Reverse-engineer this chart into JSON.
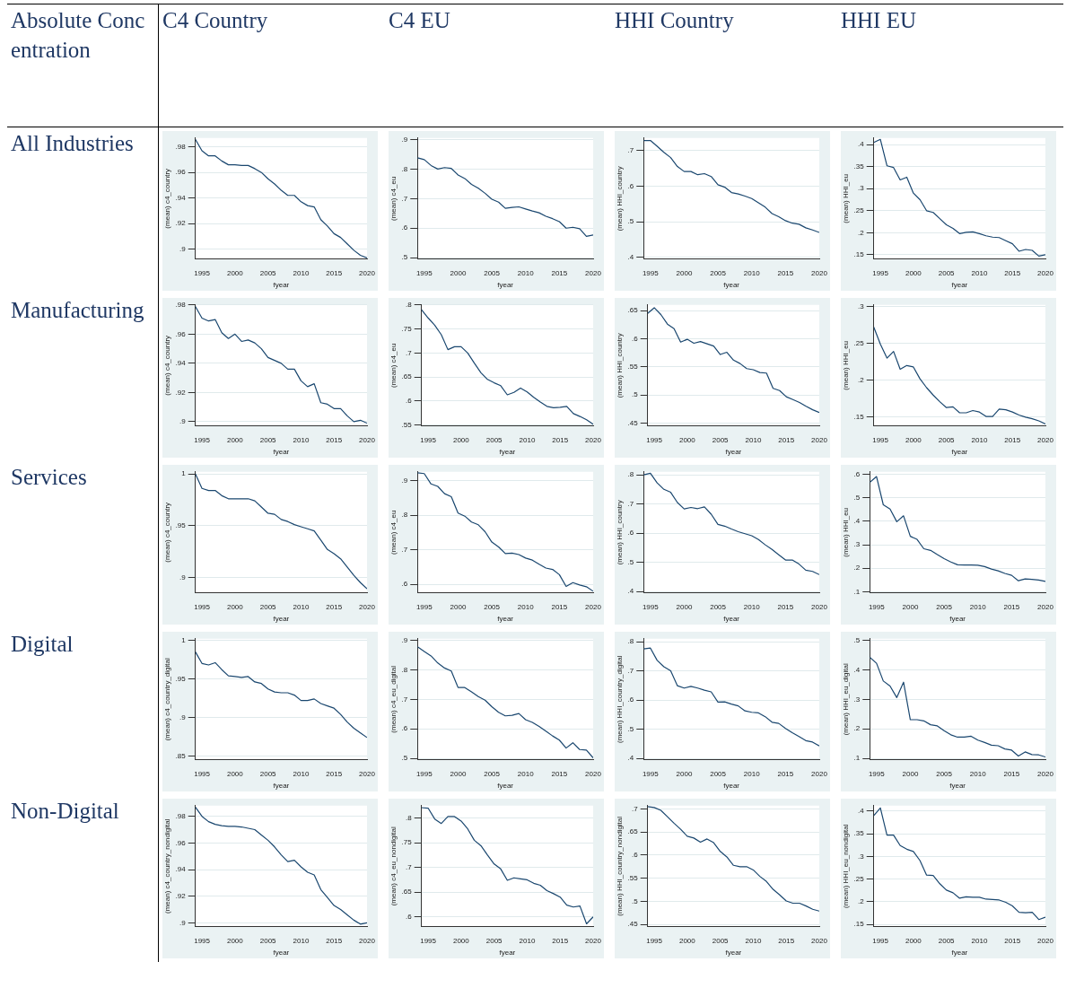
{
  "chart_data": [
    {
      "type": "other",
      "annotations": [
        "Absolute Concentration",
        "C4 Country",
        "C4 EU",
        "HHI Country",
        "HHI EU",
        "All Industries",
        "Manufacturing",
        "Services",
        "Digital",
        "Non-Digital"
      ]
    },
    {
      "type": "line",
      "xlabel": "fyear",
      "ylabel": "(mean) c4_country",
      "color": "#1a476f",
      "grid": "y",
      "x": [
        1994,
        1995,
        1996,
        1997,
        1998,
        1999,
        2000,
        2001,
        2002,
        2003,
        2004,
        2005,
        2006,
        2007,
        2008,
        2009,
        2010,
        2011,
        2012,
        2013,
        2014,
        2015,
        2016,
        2017,
        2018,
        2019,
        2020
      ],
      "xlim": [
        1994,
        2020
      ],
      "xticks": [
        1995,
        2000,
        2005,
        2010,
        2015,
        2020
      ],
      "ylim": [
        0.892,
        0.987
      ],
      "yticks": [
        {
          "value": 0.9,
          "label": ".9"
        },
        {
          "value": 0.92,
          "label": ".92"
        },
        {
          "value": 0.94,
          "label": ".94"
        },
        {
          "value": 0.96,
          "label": ".96"
        },
        {
          "value": 0.98,
          "label": ".98"
        }
      ],
      "values": [
        0.986,
        0.977,
        0.973,
        0.973,
        0.969,
        0.966,
        0.966,
        0.9655,
        0.9655,
        0.963,
        0.96,
        0.955,
        0.951,
        0.946,
        0.942,
        0.942,
        0.937,
        0.934,
        0.933,
        0.923,
        0.918,
        0.912,
        0.909,
        0.904,
        0.899,
        0.895,
        0.893
      ]
    },
    {
      "type": "line",
      "xlabel": "fyear",
      "ylabel": "(mean) c4_eu",
      "color": "#1a476f",
      "grid": "y",
      "x": [
        1994,
        1995,
        1996,
        1997,
        1998,
        1999,
        2000,
        2001,
        2002,
        2003,
        2004,
        2005,
        2006,
        2007,
        2008,
        2009,
        2010,
        2011,
        2012,
        2013,
        2014,
        2015,
        2016,
        2017,
        2018,
        2019,
        2020
      ],
      "xlim": [
        1994,
        2020
      ],
      "xticks": [
        1995,
        2000,
        2005,
        2010,
        2015,
        2020
      ],
      "ylim": [
        0.495,
        0.905
      ],
      "yticks": [
        {
          "value": 0.5,
          "label": ".5"
        },
        {
          "value": 0.6,
          "label": ".6"
        },
        {
          "value": 0.7,
          "label": ".7"
        },
        {
          "value": 0.8,
          "label": ".8"
        },
        {
          "value": 0.9,
          "label": ".9"
        }
      ],
      "values": [
        0.838,
        0.832,
        0.812,
        0.8,
        0.805,
        0.802,
        0.78,
        0.768,
        0.748,
        0.735,
        0.718,
        0.698,
        0.688,
        0.667,
        0.67,
        0.672,
        0.665,
        0.658,
        0.652,
        0.64,
        0.632,
        0.622,
        0.6,
        0.603,
        0.598,
        0.572,
        0.577
      ]
    },
    {
      "type": "line",
      "xlabel": "fyear",
      "ylabel": "(mean) HHI_country",
      "color": "#1a476f",
      "grid": "y",
      "x": [
        1994,
        1995,
        1996,
        1997,
        1998,
        1999,
        2000,
        2001,
        2002,
        2003,
        2004,
        2005,
        2006,
        2007,
        2008,
        2009,
        2010,
        2011,
        2012,
        2013,
        2014,
        2015,
        2016,
        2017,
        2018,
        2019,
        2020
      ],
      "xlim": [
        1994,
        2020
      ],
      "xticks": [
        1995,
        2000,
        2005,
        2010,
        2015,
        2020
      ],
      "ylim": [
        0.395,
        0.735
      ],
      "yticks": [
        {
          "value": 0.4,
          "label": ".4"
        },
        {
          "value": 0.5,
          "label": ".5"
        },
        {
          "value": 0.6,
          "label": ".6"
        },
        {
          "value": 0.7,
          "label": ".7"
        }
      ],
      "values": [
        0.728,
        0.728,
        0.712,
        0.695,
        0.68,
        0.655,
        0.641,
        0.641,
        0.632,
        0.635,
        0.627,
        0.604,
        0.597,
        0.582,
        0.578,
        0.572,
        0.565,
        0.553,
        0.541,
        0.523,
        0.514,
        0.503,
        0.496,
        0.493,
        0.483,
        0.477,
        0.47
      ]
    },
    {
      "type": "line",
      "xlabel": "fyear",
      "ylabel": "(mean) HHI_eu",
      "color": "#1a476f",
      "grid": "y",
      "x": [
        1994,
        1995,
        1996,
        1997,
        1998,
        1999,
        2000,
        2001,
        2002,
        2003,
        2004,
        2005,
        2006,
        2007,
        2008,
        2009,
        2010,
        2011,
        2012,
        2013,
        2014,
        2015,
        2016,
        2017,
        2018,
        2019,
        2020
      ],
      "xlim": [
        1994,
        2020
      ],
      "xticks": [
        1995,
        2000,
        2005,
        2010,
        2015,
        2020
      ],
      "ylim": [
        0.14,
        0.415
      ],
      "yticks": [
        {
          "value": 0.15,
          "label": ".15"
        },
        {
          "value": 0.2,
          "label": ".2"
        },
        {
          "value": 0.25,
          "label": ".25"
        },
        {
          "value": 0.3,
          "label": ".3"
        },
        {
          "value": 0.35,
          "label": ".35"
        },
        {
          "value": 0.4,
          "label": ".4"
        }
      ],
      "values": [
        0.405,
        0.412,
        0.352,
        0.348,
        0.32,
        0.326,
        0.29,
        0.275,
        0.25,
        0.246,
        0.232,
        0.218,
        0.21,
        0.198,
        0.201,
        0.202,
        0.198,
        0.193,
        0.19,
        0.189,
        0.182,
        0.175,
        0.158,
        0.162,
        0.16,
        0.147,
        0.15
      ]
    },
    {
      "type": "line",
      "xlabel": "fyear",
      "ylabel": "(mean) c4_country",
      "color": "#1a476f",
      "grid": "y",
      "x": [
        1994,
        1995,
        1996,
        1997,
        1998,
        1999,
        2000,
        2001,
        2002,
        2003,
        2004,
        2005,
        2006,
        2007,
        2008,
        2009,
        2010,
        2011,
        2012,
        2013,
        2014,
        2015,
        2016,
        2017,
        2018,
        2019,
        2020
      ],
      "xlim": [
        1994,
        2020
      ],
      "xticks": [
        1995,
        2000,
        2005,
        2010,
        2015,
        2020
      ],
      "ylim": [
        0.897,
        0.98
      ],
      "yticks": [
        {
          "value": 0.9,
          "label": ".9"
        },
        {
          "value": 0.92,
          "label": ".92"
        },
        {
          "value": 0.94,
          "label": ".94"
        },
        {
          "value": 0.96,
          "label": ".96"
        },
        {
          "value": 0.98,
          "label": ".98"
        }
      ],
      "values": [
        0.979,
        0.971,
        0.969,
        0.97,
        0.961,
        0.957,
        0.96,
        0.955,
        0.956,
        0.954,
        0.95,
        0.944,
        0.942,
        0.94,
        0.936,
        0.936,
        0.928,
        0.924,
        0.926,
        0.913,
        0.912,
        0.909,
        0.909,
        0.904,
        0.9,
        0.901,
        0.899
      ]
    },
    {
      "type": "line",
      "xlabel": "fyear",
      "ylabel": "(mean) c4_eu",
      "color": "#1a476f",
      "grid": "y",
      "x": [
        1994,
        1995,
        1996,
        1997,
        1998,
        1999,
        2000,
        2001,
        2002,
        2003,
        2004,
        2005,
        2006,
        2007,
        2008,
        2009,
        2010,
        2011,
        2012,
        2013,
        2014,
        2015,
        2016,
        2017,
        2018,
        2019,
        2020
      ],
      "xlim": [
        1994,
        2020
      ],
      "xticks": [
        1995,
        2000,
        2005,
        2010,
        2015,
        2020
      ],
      "ylim": [
        0.548,
        0.8
      ],
      "yticks": [
        {
          "value": 0.55,
          "label": ".55"
        },
        {
          "value": 0.6,
          "label": ".6"
        },
        {
          "value": 0.65,
          "label": ".65"
        },
        {
          "value": 0.7,
          "label": ".7"
        },
        {
          "value": 0.75,
          "label": ".75"
        },
        {
          "value": 0.8,
          "label": ".8"
        }
      ],
      "values": [
        0.79,
        0.773,
        0.758,
        0.738,
        0.707,
        0.713,
        0.713,
        0.7,
        0.679,
        0.659,
        0.645,
        0.638,
        0.632,
        0.613,
        0.618,
        0.627,
        0.619,
        0.608,
        0.598,
        0.589,
        0.586,
        0.587,
        0.589,
        0.574,
        0.568,
        0.561,
        0.552
      ]
    },
    {
      "type": "line",
      "xlabel": "fyear",
      "ylabel": "(mean) HHI_country",
      "color": "#1a476f",
      "grid": "y",
      "x": [
        1994,
        1995,
        1996,
        1997,
        1998,
        1999,
        2000,
        2001,
        2002,
        2003,
        2004,
        2005,
        2006,
        2007,
        2008,
        2009,
        2010,
        2011,
        2012,
        2013,
        2014,
        2015,
        2016,
        2017,
        2018,
        2019,
        2020
      ],
      "xlim": [
        1994,
        2020
      ],
      "xticks": [
        1995,
        2000,
        2005,
        2010,
        2015,
        2020
      ],
      "ylim": [
        0.445,
        0.66
      ],
      "yticks": [
        {
          "value": 0.45,
          "label": ".45"
        },
        {
          "value": 0.5,
          "label": ".5"
        },
        {
          "value": 0.55,
          "label": ".55"
        },
        {
          "value": 0.6,
          "label": ".6"
        },
        {
          "value": 0.65,
          "label": ".65"
        }
      ],
      "values": [
        0.645,
        0.655,
        0.643,
        0.626,
        0.618,
        0.594,
        0.599,
        0.592,
        0.595,
        0.591,
        0.587,
        0.572,
        0.576,
        0.562,
        0.556,
        0.547,
        0.545,
        0.54,
        0.539,
        0.512,
        0.508,
        0.497,
        0.492,
        0.487,
        0.48,
        0.474,
        0.469
      ]
    },
    {
      "type": "line",
      "xlabel": "fyear",
      "ylabel": "(mean) HHI_eu",
      "color": "#1a476f",
      "grid": "y",
      "x": [
        1994,
        1995,
        1996,
        1997,
        1998,
        1999,
        2000,
        2001,
        2002,
        2003,
        2004,
        2005,
        2006,
        2007,
        2008,
        2009,
        2010,
        2011,
        2012,
        2013,
        2014,
        2015,
        2016,
        2017,
        2018,
        2019,
        2020
      ],
      "xlim": [
        1994,
        2020
      ],
      "xticks": [
        1995,
        2000,
        2005,
        2010,
        2015,
        2020
      ],
      "ylim": [
        0.138,
        0.302
      ],
      "yticks": [
        {
          "value": 0.15,
          "label": ".15"
        },
        {
          "value": 0.2,
          "label": ".2"
        },
        {
          "value": 0.25,
          "label": ".25"
        },
        {
          "value": 0.3,
          "label": ".3"
        }
      ],
      "values": [
        0.272,
        0.249,
        0.23,
        0.239,
        0.215,
        0.22,
        0.218,
        0.202,
        0.19,
        0.18,
        0.171,
        0.163,
        0.164,
        0.156,
        0.156,
        0.159,
        0.157,
        0.151,
        0.151,
        0.161,
        0.16,
        0.157,
        0.153,
        0.15,
        0.148,
        0.145,
        0.141
      ]
    },
    {
      "type": "line",
      "xlabel": "fyear",
      "ylabel": "(mean) c4_country",
      "color": "#1a476f",
      "grid": "y",
      "x": [
        1994,
        1995,
        1996,
        1997,
        1998,
        1999,
        2000,
        2001,
        2002,
        2003,
        2004,
        2005,
        2006,
        2007,
        2008,
        2009,
        2010,
        2011,
        2012,
        2013,
        2014,
        2015,
        2016,
        2017,
        2018,
        2019,
        2020
      ],
      "xlim": [
        1994,
        2020
      ],
      "xticks": [
        1995,
        2000,
        2005,
        2010,
        2015,
        2020
      ],
      "ylim": [
        0.885,
        1.002
      ],
      "yticks": [
        {
          "value": 0.9,
          "label": ".9"
        },
        {
          "value": 0.95,
          "label": ".95"
        },
        1
      ],
      "values": [
        1.0,
        0.986,
        0.984,
        0.984,
        0.979,
        0.976,
        0.976,
        0.976,
        0.976,
        0.974,
        0.968,
        0.962,
        0.961,
        0.956,
        0.954,
        0.951,
        0.949,
        0.947,
        0.945,
        0.936,
        0.927,
        0.923,
        0.918,
        0.91,
        0.902,
        0.895,
        0.889
      ]
    },
    {
      "type": "line",
      "xlabel": "fyear",
      "ylabel": "(mean) c4_eu",
      "color": "#1a476f",
      "grid": "y",
      "x": [
        1994,
        1995,
        1996,
        1997,
        1998,
        1999,
        2000,
        2001,
        2002,
        2003,
        2004,
        2005,
        2006,
        2007,
        2008,
        2009,
        2010,
        2011,
        2012,
        2013,
        2014,
        2015,
        2016,
        2017,
        2018,
        2019,
        2020
      ],
      "xlim": [
        1994,
        2020
      ],
      "xticks": [
        1995,
        2000,
        2005,
        2010,
        2015,
        2020
      ],
      "ylim": [
        0.575,
        0.925
      ],
      "yticks": [
        {
          "value": 0.6,
          "label": ".6"
        },
        {
          "value": 0.7,
          "label": ".7"
        },
        {
          "value": 0.8,
          "label": ".8"
        },
        {
          "value": 0.9,
          "label": ".9"
        }
      ],
      "values": [
        0.922,
        0.92,
        0.89,
        0.883,
        0.862,
        0.853,
        0.806,
        0.797,
        0.78,
        0.772,
        0.752,
        0.722,
        0.708,
        0.689,
        0.69,
        0.686,
        0.676,
        0.67,
        0.658,
        0.647,
        0.643,
        0.628,
        0.594,
        0.605,
        0.598,
        0.593,
        0.58
      ]
    },
    {
      "type": "line",
      "xlabel": "fyear",
      "ylabel": "(mean) HHI_country",
      "color": "#1a476f",
      "grid": "y",
      "x": [
        1994,
        1995,
        1996,
        1997,
        1998,
        1999,
        2000,
        2001,
        2002,
        2003,
        2004,
        2005,
        2006,
        2007,
        2008,
        2009,
        2010,
        2011,
        2012,
        2013,
        2014,
        2015,
        2016,
        2017,
        2018,
        2019,
        2020
      ],
      "xlim": [
        1994,
        2020
      ],
      "xticks": [
        1995,
        2000,
        2005,
        2010,
        2015,
        2020
      ],
      "ylim": [
        0.395,
        0.81
      ],
      "yticks": [
        {
          "value": 0.4,
          "label": ".4"
        },
        {
          "value": 0.5,
          "label": ".5"
        },
        {
          "value": 0.6,
          "label": ".6"
        },
        {
          "value": 0.7,
          "label": ".7"
        },
        {
          "value": 0.8,
          "label": ".8"
        }
      ],
      "values": [
        0.8,
        0.805,
        0.772,
        0.75,
        0.74,
        0.705,
        0.683,
        0.688,
        0.684,
        0.69,
        0.665,
        0.63,
        0.624,
        0.614,
        0.605,
        0.598,
        0.591,
        0.578,
        0.56,
        0.544,
        0.526,
        0.508,
        0.508,
        0.494,
        0.473,
        0.469,
        0.458
      ]
    },
    {
      "type": "line",
      "xlabel": "fyear",
      "ylabel": "(mean) HHI_eu",
      "color": "#1a476f",
      "grid": "y",
      "x": [
        1994,
        1995,
        1996,
        1997,
        1998,
        1999,
        2000,
        2001,
        2002,
        2003,
        2004,
        2005,
        2006,
        2007,
        2008,
        2009,
        2010,
        2011,
        2012,
        2013,
        2014,
        2015,
        2016,
        2017,
        2018,
        2019,
        2020
      ],
      "xlim": [
        1994,
        2020
      ],
      "xticks": [
        1995,
        2000,
        2005,
        2010,
        2015,
        2020
      ],
      "ylim": [
        0.095,
        0.61
      ],
      "yticks": [
        {
          "value": 0.1,
          "label": ".1"
        },
        {
          "value": 0.2,
          "label": ".2"
        },
        {
          "value": 0.3,
          "label": ".3"
        },
        {
          "value": 0.4,
          "label": ".4"
        },
        {
          "value": 0.5,
          "label": ".5"
        },
        {
          "value": 0.6,
          "label": ".6"
        }
      ],
      "values": [
        0.565,
        0.59,
        0.47,
        0.452,
        0.398,
        0.423,
        0.336,
        0.323,
        0.283,
        0.276,
        0.258,
        0.241,
        0.227,
        0.215,
        0.214,
        0.214,
        0.213,
        0.207,
        0.197,
        0.189,
        0.178,
        0.17,
        0.147,
        0.155,
        0.153,
        0.15,
        0.144
      ]
    },
    {
      "type": "line",
      "xlabel": "fyear",
      "ylabel": "(mean) c4_country_digital",
      "color": "#1a476f",
      "grid": "y",
      "x": [
        1994,
        1995,
        1996,
        1997,
        1998,
        1999,
        2000,
        2001,
        2002,
        2003,
        2004,
        2005,
        2006,
        2007,
        2008,
        2009,
        2010,
        2011,
        2012,
        2013,
        2014,
        2015,
        2016,
        2017,
        2018,
        2019,
        2020
      ],
      "xlim": [
        1994,
        2020
      ],
      "xticks": [
        1995,
        2000,
        2005,
        2010,
        2015,
        2020
      ],
      "ylim": [
        0.845,
        1.002
      ],
      "yticks": [
        {
          "value": 0.85,
          "label": ".85"
        },
        {
          "value": 0.9,
          "label": ".9"
        },
        {
          "value": 0.95,
          "label": ".95"
        },
        1
      ],
      "values": [
        0.985,
        0.97,
        0.968,
        0.971,
        0.962,
        0.954,
        0.953,
        0.952,
        0.953,
        0.946,
        0.944,
        0.937,
        0.933,
        0.932,
        0.932,
        0.929,
        0.922,
        0.922,
        0.924,
        0.918,
        0.915,
        0.912,
        0.904,
        0.894,
        0.886,
        0.88,
        0.874
      ]
    },
    {
      "type": "line",
      "xlabel": "fyear",
      "ylabel": "(mean) c4_eu_digital",
      "color": "#1a476f",
      "grid": "y",
      "x": [
        1994,
        1995,
        1996,
        1997,
        1998,
        1999,
        2000,
        2001,
        2002,
        2003,
        2004,
        2005,
        2006,
        2007,
        2008,
        2009,
        2010,
        2011,
        2012,
        2013,
        2014,
        2015,
        2016,
        2017,
        2018,
        2019,
        2020
      ],
      "xlim": [
        1994,
        2020
      ],
      "xticks": [
        1995,
        2000,
        2005,
        2010,
        2015,
        2020
      ],
      "ylim": [
        0.495,
        0.905
      ],
      "yticks": [
        {
          "value": 0.5,
          "label": ".5"
        },
        {
          "value": 0.6,
          "label": ".6"
        },
        {
          "value": 0.7,
          "label": ".7"
        },
        {
          "value": 0.8,
          "label": ".8"
        },
        {
          "value": 0.9,
          "label": ".9"
        }
      ],
      "values": [
        0.878,
        0.862,
        0.847,
        0.823,
        0.806,
        0.796,
        0.74,
        0.74,
        0.725,
        0.709,
        0.697,
        0.675,
        0.656,
        0.644,
        0.646,
        0.652,
        0.631,
        0.622,
        0.608,
        0.592,
        0.576,
        0.562,
        0.535,
        0.553,
        0.53,
        0.528,
        0.502
      ]
    },
    {
      "type": "line",
      "xlabel": "fyear",
      "ylabel": "(mean) HHI_country_digital",
      "color": "#1a476f",
      "grid": "y",
      "x": [
        1994,
        1995,
        1996,
        1997,
        1998,
        1999,
        2000,
        2001,
        2002,
        2003,
        2004,
        2005,
        2006,
        2007,
        2008,
        2009,
        2010,
        2011,
        2012,
        2013,
        2014,
        2015,
        2016,
        2017,
        2018,
        2019,
        2020
      ],
      "xlim": [
        1994,
        2020
      ],
      "xticks": [
        1995,
        2000,
        2005,
        2010,
        2015,
        2020
      ],
      "ylim": [
        0.395,
        0.81
      ],
      "yticks": [
        {
          "value": 0.4,
          "label": ".4"
        },
        {
          "value": 0.5,
          "label": ".5"
        },
        {
          "value": 0.6,
          "label": ".6"
        },
        {
          "value": 0.7,
          "label": ".7"
        },
        {
          "value": 0.8,
          "label": ".8"
        }
      ],
      "values": [
        0.775,
        0.778,
        0.736,
        0.714,
        0.7,
        0.649,
        0.641,
        0.647,
        0.641,
        0.634,
        0.628,
        0.593,
        0.594,
        0.586,
        0.58,
        0.563,
        0.558,
        0.556,
        0.543,
        0.524,
        0.52,
        0.503,
        0.488,
        0.475,
        0.461,
        0.456,
        0.443
      ]
    },
    {
      "type": "line",
      "xlabel": "fyear",
      "ylabel": "(mean) HHI_eu_digital",
      "color": "#1a476f",
      "grid": "y",
      "x": [
        1994,
        1995,
        1996,
        1997,
        1998,
        1999,
        2000,
        2001,
        2002,
        2003,
        2004,
        2005,
        2006,
        2007,
        2008,
        2009,
        2010,
        2011,
        2012,
        2013,
        2014,
        2015,
        2016,
        2017,
        2018,
        2019,
        2020
      ],
      "xlim": [
        1994,
        2020
      ],
      "xticks": [
        1995,
        2000,
        2005,
        2010,
        2015,
        2020
      ],
      "ylim": [
        0.095,
        0.505
      ],
      "yticks": [
        {
          "value": 0.1,
          "label": ".1"
        },
        {
          "value": 0.2,
          "label": ".2"
        },
        {
          "value": 0.3,
          "label": ".3"
        },
        {
          "value": 0.4,
          "label": ".4"
        },
        {
          "value": 0.5,
          "label": ".5"
        }
      ],
      "values": [
        0.442,
        0.422,
        0.362,
        0.345,
        0.306,
        0.358,
        0.231,
        0.231,
        0.227,
        0.214,
        0.21,
        0.194,
        0.18,
        0.172,
        0.172,
        0.175,
        0.162,
        0.154,
        0.145,
        0.143,
        0.132,
        0.128,
        0.108,
        0.122,
        0.113,
        0.112,
        0.105
      ]
    },
    {
      "type": "line",
      "xlabel": "fyear",
      "ylabel": "(mean) c4_country_nondigital",
      "color": "#1a476f",
      "grid": "y",
      "x": [
        1994,
        1995,
        1996,
        1997,
        1998,
        1999,
        2000,
        2001,
        2002,
        2003,
        2004,
        2005,
        2006,
        2007,
        2008,
        2009,
        2010,
        2011,
        2012,
        2013,
        2014,
        2015,
        2016,
        2017,
        2018,
        2019,
        2020
      ],
      "xlim": [
        1994,
        2020
      ],
      "xticks": [
        1995,
        2000,
        2005,
        2010,
        2015,
        2020
      ],
      "ylim": [
        0.897,
        0.988
      ],
      "yticks": [
        {
          "value": 0.9,
          "label": ".9"
        },
        {
          "value": 0.92,
          "label": ".92"
        },
        {
          "value": 0.94,
          "label": ".94"
        },
        {
          "value": 0.96,
          "label": ".96"
        },
        {
          "value": 0.98,
          "label": ".98"
        }
      ],
      "values": [
        0.987,
        0.98,
        0.976,
        0.974,
        0.973,
        0.9725,
        0.9725,
        0.972,
        0.971,
        0.97,
        0.966,
        0.962,
        0.957,
        0.951,
        0.946,
        0.947,
        0.942,
        0.938,
        0.936,
        0.925,
        0.919,
        0.913,
        0.91,
        0.906,
        0.902,
        0.899,
        0.9
      ]
    },
    {
      "type": "line",
      "xlabel": "fyear",
      "ylabel": "(mean) c4_eu_nondigital",
      "color": "#1a476f",
      "grid": "y",
      "x": [
        1994,
        1995,
        1996,
        1997,
        1998,
        1999,
        2000,
        2001,
        2002,
        2003,
        2004,
        2005,
        2006,
        2007,
        2008,
        2009,
        2010,
        2011,
        2012,
        2013,
        2014,
        2015,
        2016,
        2017,
        2018,
        2019,
        2020
      ],
      "xlim": [
        1994,
        2020
      ],
      "xticks": [
        1995,
        2000,
        2005,
        2010,
        2015,
        2020
      ],
      "ylim": [
        0.58,
        0.825
      ],
      "yticks": [
        {
          "value": 0.6,
          "label": ".6"
        },
        {
          "value": 0.65,
          "label": ".65"
        },
        {
          "value": 0.7,
          "label": ".7"
        },
        {
          "value": 0.75,
          "label": ".75"
        },
        {
          "value": 0.8,
          "label": ".8"
        }
      ],
      "values": [
        0.821,
        0.82,
        0.798,
        0.789,
        0.803,
        0.803,
        0.794,
        0.778,
        0.755,
        0.744,
        0.725,
        0.707,
        0.697,
        0.674,
        0.679,
        0.677,
        0.675,
        0.668,
        0.664,
        0.653,
        0.647,
        0.64,
        0.624,
        0.62,
        0.622,
        0.586,
        0.6
      ]
    },
    {
      "type": "line",
      "xlabel": "fyear",
      "ylabel": "(mean) HHI_country_nondigital",
      "color": "#1a476f",
      "grid": "y",
      "x": [
        1994,
        1995,
        1996,
        1997,
        1998,
        1999,
        2000,
        2001,
        2002,
        2003,
        2004,
        2005,
        2006,
        2007,
        2008,
        2009,
        2010,
        2011,
        2012,
        2013,
        2014,
        2015,
        2016,
        2017,
        2018,
        2019,
        2020
      ],
      "xlim": [
        1994,
        2020
      ],
      "xticks": [
        1995,
        2000,
        2005,
        2010,
        2015,
        2020
      ],
      "ylim": [
        0.445,
        0.707
      ],
      "yticks": [
        {
          "value": 0.45,
          "label": ".45"
        },
        {
          "value": 0.5,
          "label": ".5"
        },
        {
          "value": 0.55,
          "label": ".55"
        },
        {
          "value": 0.6,
          "label": ".6"
        },
        {
          "value": 0.65,
          "label": ".65"
        },
        {
          "value": 0.7,
          "label": ".7"
        }
      ],
      "values": [
        0.705,
        0.703,
        0.697,
        0.683,
        0.669,
        0.656,
        0.641,
        0.637,
        0.628,
        0.635,
        0.627,
        0.608,
        0.596,
        0.578,
        0.575,
        0.575,
        0.568,
        0.554,
        0.543,
        0.526,
        0.514,
        0.501,
        0.496,
        0.496,
        0.49,
        0.483,
        0.479
      ]
    },
    {
      "type": "line",
      "xlabel": "fyear",
      "ylabel": "(mean) HHI_eu_nondigital",
      "color": "#1a476f",
      "grid": "y",
      "x": [
        1994,
        1995,
        1996,
        1997,
        1998,
        1999,
        2000,
        2001,
        2002,
        2003,
        2004,
        2005,
        2006,
        2007,
        2008,
        2009,
        2010,
        2011,
        2012,
        2013,
        2014,
        2015,
        2016,
        2017,
        2018,
        2019,
        2020
      ],
      "xlim": [
        1994,
        2020
      ],
      "xticks": [
        1995,
        2000,
        2005,
        2010,
        2015,
        2020
      ],
      "ylim": [
        0.145,
        0.412
      ],
      "yticks": [
        {
          "value": 0.15,
          "label": ".15"
        },
        {
          "value": 0.2,
          "label": ".2"
        },
        {
          "value": 0.25,
          "label": ".25"
        },
        {
          "value": 0.3,
          "label": ".3"
        },
        {
          "value": 0.35,
          "label": ".35"
        },
        {
          "value": 0.4,
          "label": ".4"
        }
      ],
      "values": [
        0.39,
        0.407,
        0.347,
        0.347,
        0.324,
        0.316,
        0.311,
        0.291,
        0.259,
        0.258,
        0.24,
        0.226,
        0.22,
        0.208,
        0.211,
        0.21,
        0.21,
        0.206,
        0.205,
        0.204,
        0.199,
        0.191,
        0.177,
        0.176,
        0.177,
        0.161,
        0.166
      ]
    }
  ]
}
